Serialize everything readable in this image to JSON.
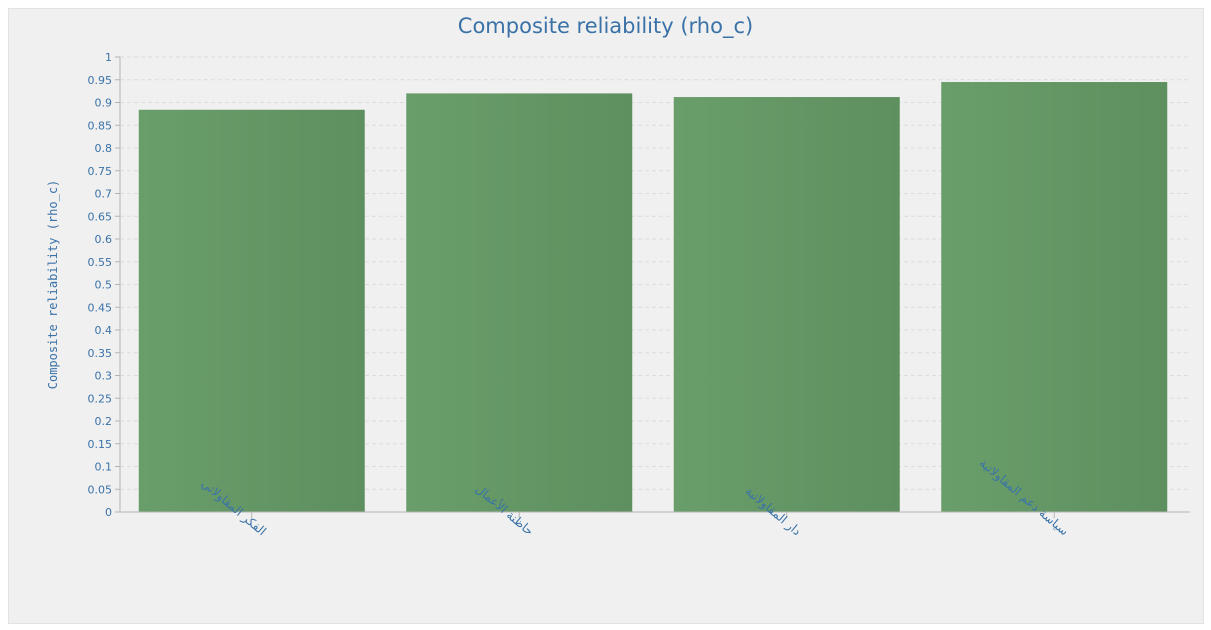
{
  "chart_data": {
    "type": "bar",
    "title": "Composite reliability (rho_c)",
    "ylabel": "Composite reliability (rho_c)",
    "xlabel": "",
    "ylim": [
      0,
      1
    ],
    "y_tick_step": 0.05,
    "y_ticks": [
      "0",
      "0.05",
      "0.1",
      "0.15",
      "0.2",
      "0.25",
      "0.3",
      "0.35",
      "0.4",
      "0.45",
      "0.5",
      "0.55",
      "0.6",
      "0.65",
      "0.7",
      "0.75",
      "0.8",
      "0.85",
      "0.9",
      "0.95",
      "1"
    ],
    "categories": [
      "الفكر المقاولاتي",
      "حاظنة الأعمال",
      "دار المقاولاتية",
      "سياسة دعم المقاولاتية"
    ],
    "values": [
      0.884,
      0.92,
      0.912,
      0.945
    ],
    "grid": "horizontal dashed",
    "legend": "none",
    "colors": {
      "bar": "#659966",
      "bar_dark": "#5e8f5f",
      "text": "#3a72a8",
      "grid": "#dcdcdc",
      "background": "#f0f0f0"
    }
  }
}
